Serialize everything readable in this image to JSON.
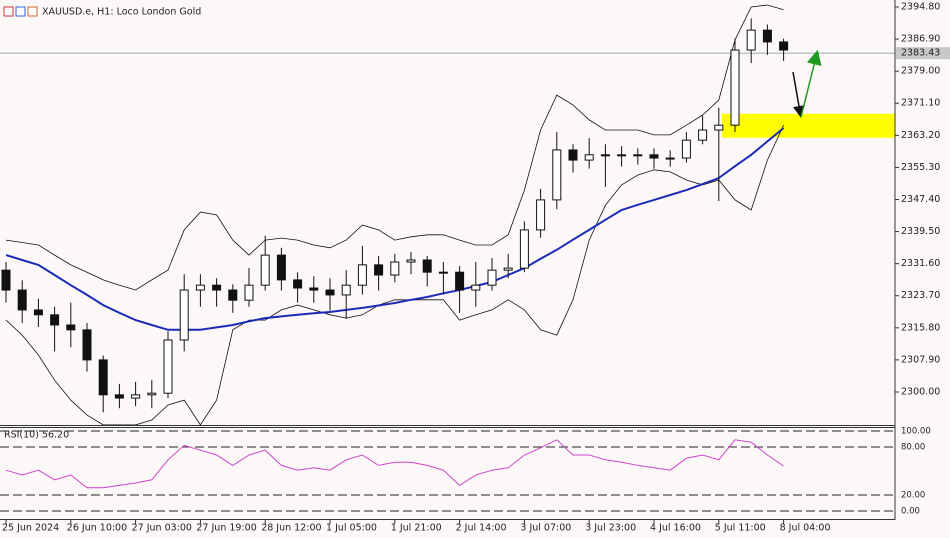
{
  "chart_data": {
    "type": "candlestick",
    "title": "XAUUSD.e, H1: Loco London Gold",
    "categories": [
      "25 Jun 2024",
      null,
      null,
      null,
      "26 Jun 10:00",
      null,
      null,
      null,
      "27 Jun 03:00",
      null,
      null,
      null,
      "27 Jun 19:00",
      null,
      null,
      null,
      "28 Jun 12:00",
      null,
      null,
      null,
      "1 Jul 05:00",
      null,
      null,
      null,
      "1 Jul 21:00",
      null,
      null,
      null,
      "2 Jul 14:00",
      null,
      null,
      null,
      "3 Jul 07:00",
      null,
      null,
      null,
      "3 Jul 23:00",
      null,
      null,
      null,
      "4 Jul 16:00",
      null,
      null,
      null,
      "5 Jul 11:00",
      null,
      null,
      null,
      "8 Jul 04:00"
    ],
    "open": [
      2330.0,
      2325.1,
      2320.2,
      2319.0,
      2316.5,
      2315.3,
      2307.9,
      2299.3,
      2298.5,
      2299.3,
      2299.7,
      2312.8,
      2325.1,
      2326.3,
      2325.1,
      2322.6,
      2326.3,
      2333.7,
      2327.6,
      2325.6,
      2325.1,
      2323.9,
      2326.3,
      2331.3,
      2328.8,
      2332.0,
      2332.5,
      2329.5,
      2329.5,
      2325.1,
      2326.3,
      2330.0,
      2330.5,
      2339.9,
      2347.3,
      2359.6,
      2357.1,
      2358.4,
      2358.4,
      2358.4,
      2358.4,
      2357.6,
      2357.6,
      2362.0,
      2364.5,
      2365.7,
      2384.2,
      2389.1,
      2386.2
    ],
    "high": [
      2332.0,
      2327.5,
      2323.0,
      2321.0,
      2322.0,
      2317.0,
      2309.0,
      2302.0,
      2302.5,
      2303.0,
      2315.0,
      2329.0,
      2329.0,
      2328.0,
      2326.5,
      2330.5,
      2338.5,
      2335.5,
      2329.5,
      2328.5,
      2328.0,
      2330.0,
      2336.0,
      2333.5,
      2334.0,
      2334.5,
      2333.5,
      2332.0,
      2331.0,
      2332.0,
      2333.0,
      2334.0,
      2342.0,
      2350.0,
      2364.0,
      2361.0,
      2362.5,
      2361.0,
      2360.5,
      2360.0,
      2360.0,
      2359.5,
      2364.0,
      2368.0,
      2370.0,
      2387.0,
      2392.0,
      2390.5,
      2387.0
    ],
    "low": [
      2322.0,
      2317.0,
      2316.0,
      2310.0,
      2311.0,
      2305.0,
      2295.0,
      2296.0,
      2296.5,
      2296.0,
      2298.5,
      2310.0,
      2321.0,
      2321.0,
      2319.5,
      2321.0,
      2325.0,
      2325.0,
      2322.0,
      2322.0,
      2320.0,
      2318.0,
      2324.0,
      2325.0,
      2327.0,
      2329.0,
      2326.0,
      2324.0,
      2319.5,
      2321.0,
      2325.0,
      2328.0,
      2329.5,
      2338.0,
      2345.0,
      2354.0,
      2355.0,
      2350.5,
      2355.5,
      2356.0,
      2355.0,
      2355.5,
      2356.5,
      2361.0,
      2347.0,
      2364.0,
      2381.0,
      2383.0,
      2381.5
    ],
    "close": [
      2325.1,
      2320.2,
      2319.0,
      2316.5,
      2315.3,
      2307.9,
      2299.3,
      2298.5,
      2299.3,
      2299.7,
      2312.8,
      2325.1,
      2326.3,
      2325.1,
      2322.6,
      2326.3,
      2333.7,
      2327.6,
      2325.6,
      2325.1,
      2323.9,
      2326.3,
      2331.3,
      2328.8,
      2332.0,
      2332.5,
      2329.5,
      2329.5,
      2325.1,
      2326.3,
      2330.0,
      2330.5,
      2339.9,
      2347.3,
      2359.6,
      2357.1,
      2358.4,
      2358.4,
      2358.4,
      2358.4,
      2357.6,
      2357.6,
      2362.0,
      2364.5,
      2365.7,
      2384.2,
      2389.1,
      2386.2,
      2384.2
    ],
    "ma": [
      2333.7,
      2332.5,
      2331.3,
      2328.8,
      2326.3,
      2323.9,
      2321.4,
      2319.5,
      2317.7,
      2316.5,
      2315.3,
      2315.3,
      2315.3,
      2315.9,
      2316.5,
      2317.4,
      2318.2,
      2318.6,
      2319.0,
      2319.4,
      2319.7,
      2320.2,
      2320.7,
      2321.3,
      2321.9,
      2322.7,
      2323.4,
      2324.3,
      2325.1,
      2326.1,
      2327.1,
      2328.8,
      2330.5,
      2332.8,
      2335.0,
      2337.5,
      2339.9,
      2342.4,
      2344.8,
      2346.1,
      2347.3,
      2348.5,
      2349.7,
      2351.2,
      2352.7,
      2355.6,
      2358.4,
      2361.7,
      2365.0
    ],
    "ma_color": "#1a2bb8",
    "bb_upper": [
      2337.4,
      2336.8,
      2336.2,
      2333.7,
      2331.3,
      2329.5,
      2327.6,
      2326.3,
      2325.1,
      2327.6,
      2330.0,
      2339.9,
      2344.3,
      2343.6,
      2337.4,
      2333.7,
      2337.4,
      2337.9,
      2337.4,
      2336.2,
      2335.5,
      2337.4,
      2341.1,
      2339.9,
      2337.4,
      2338.2,
      2338.7,
      2338.7,
      2337.4,
      2336.2,
      2336.2,
      2338.7,
      2349.7,
      2364.5,
      2373.1,
      2370.7,
      2367.0,
      2364.5,
      2364.5,
      2364.5,
      2363.3,
      2363.3,
      2365.7,
      2368.2,
      2371.9,
      2386.7,
      2394.8,
      2395.3,
      2394.1
    ],
    "bb_lower": [
      2317.7,
      2314.0,
      2309.1,
      2302.9,
      2298.0,
      2294.3,
      2291.9,
      2291.9,
      2291.9,
      2293.1,
      2296.8,
      2298.0,
      2291.9,
      2298.0,
      2315.3,
      2317.7,
      2317.7,
      2320.2,
      2321.4,
      2320.2,
      2319.0,
      2318.2,
      2319.0,
      2321.4,
      2322.7,
      2322.7,
      2322.7,
      2322.7,
      2317.7,
      2319.0,
      2320.2,
      2322.7,
      2320.2,
      2315.3,
      2314.0,
      2322.7,
      2337.4,
      2346.0,
      2351.0,
      2353.4,
      2354.7,
      2354.2,
      2352.2,
      2351.0,
      2352.2,
      2347.3,
      2344.8,
      2357.1,
      2365.7
    ],
    "band_color": "#111111",
    "zone": [
      2362.6,
      2368.5
    ],
    "zone_color": "#ffff00",
    "last_price": 2383.43,
    "ylim": [
      2291.87,
      2396.52
    ],
    "yticks": [
      {
        "value": 2394.8,
        "label": "2394.80"
      },
      {
        "value": 2386.9,
        "label": "2386.90"
      },
      {
        "value": 2379.0,
        "label": "2379.00"
      },
      {
        "value": 2371.1,
        "label": "2371.10"
      },
      {
        "value": 2363.2,
        "label": "2363.20"
      },
      {
        "value": 2355.3,
        "label": "2355.30"
      },
      {
        "value": 2347.4,
        "label": "2347.40"
      },
      {
        "value": 2339.5,
        "label": "2339.50"
      },
      {
        "value": 2331.6,
        "label": "2331.60"
      },
      {
        "value": 2323.7,
        "label": "2323.70"
      },
      {
        "value": 2315.8,
        "label": "2315.80"
      },
      {
        "value": 2307.9,
        "label": "2307.90"
      },
      {
        "value": 2300.0,
        "label": "2300.00"
      }
    ],
    "rsi": {
      "title": "RSI(10) 56.20",
      "color": "#cc44cc",
      "values": [
        51,
        45,
        51,
        39,
        45,
        29,
        29,
        32,
        35,
        39,
        64,
        82,
        76,
        70,
        57,
        70,
        76,
        57,
        51,
        54,
        51,
        64,
        70,
        57,
        61,
        61,
        57,
        51,
        32,
        45,
        51,
        54,
        70,
        79,
        89,
        70,
        70,
        64,
        61,
        57,
        54,
        51,
        66,
        70,
        64,
        89,
        86,
        70,
        56.2
      ],
      "ylim": [
        -11.25,
        103.75
      ],
      "yticks": [
        {
          "value": 100,
          "label": "100.00"
        },
        {
          "value": 80,
          "label": "80.00"
        },
        {
          "value": 20,
          "label": "20.00"
        },
        {
          "value": 0,
          "label": "0.00"
        }
      ]
    }
  }
}
